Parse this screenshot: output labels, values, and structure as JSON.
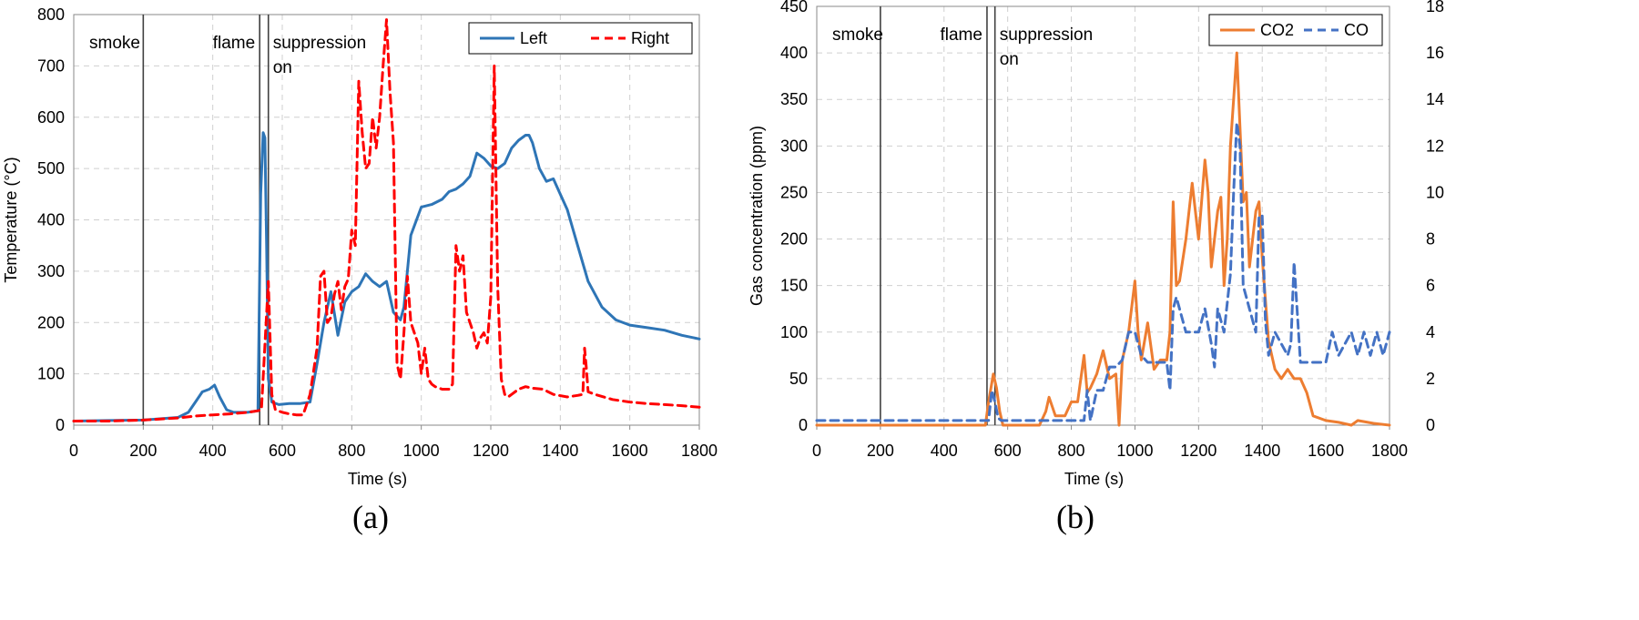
{
  "chart_data": [
    {
      "panel_label": "(a)",
      "type": "line",
      "xlabel": "Time (s)",
      "ylabel": "Temperature (°C)",
      "xlim": [
        0,
        1800
      ],
      "ylim": [
        0,
        800
      ],
      "xticks": [
        0,
        200,
        400,
        600,
        800,
        1000,
        1200,
        1400,
        1600,
        1800
      ],
      "yticks": [
        0,
        100,
        200,
        300,
        400,
        500,
        600,
        700,
        800
      ],
      "grid": "dashed",
      "legend": "top-right",
      "phase_lines": [
        {
          "x": 200,
          "label": [
            "smoke"
          ]
        },
        {
          "x": 535,
          "label": [
            "flame"
          ]
        },
        {
          "x": 560,
          "label": [
            "suppression",
            "on"
          ]
        }
      ],
      "series": [
        {
          "name": "Left",
          "color": "#2E75B6",
          "dash": "solid",
          "x": [
            0,
            100,
            200,
            300,
            330,
            350,
            370,
            390,
            405,
            420,
            440,
            460,
            500,
            530,
            538,
            545,
            550,
            555,
            560,
            565,
            570,
            590,
            620,
            650,
            680,
            700,
            720,
            740,
            760,
            780,
            800,
            820,
            840,
            860,
            880,
            900,
            920,
            940,
            950,
            970,
            1000,
            1030,
            1060,
            1080,
            1100,
            1120,
            1140,
            1160,
            1180,
            1200,
            1220,
            1240,
            1260,
            1280,
            1300,
            1310,
            1320,
            1340,
            1360,
            1380,
            1400,
            1420,
            1450,
            1480,
            1520,
            1560,
            1600,
            1650,
            1700,
            1750,
            1800
          ],
          "y": [
            8,
            9,
            10,
            15,
            25,
            45,
            65,
            70,
            78,
            55,
            30,
            25,
            25,
            28,
            450,
            570,
            560,
            350,
            90,
            70,
            45,
            40,
            42,
            42,
            45,
            120,
            200,
            260,
            175,
            240,
            260,
            270,
            295,
            280,
            270,
            280,
            220,
            205,
            230,
            370,
            425,
            430,
            440,
            455,
            460,
            470,
            485,
            530,
            520,
            505,
            500,
            510,
            540,
            555,
            565,
            565,
            550,
            500,
            475,
            480,
            450,
            420,
            350,
            280,
            230,
            205,
            195,
            190,
            185,
            175,
            168
          ]
        },
        {
          "name": "Right",
          "color": "#FF0000",
          "dash": "dashed",
          "x": [
            0,
            100,
            200,
            300,
            350,
            400,
            450,
            500,
            530,
            540,
            560,
            570,
            580,
            600,
            620,
            640,
            660,
            680,
            700,
            710,
            720,
            730,
            740,
            750,
            760,
            770,
            780,
            790,
            800,
            810,
            820,
            830,
            840,
            850,
            860,
            870,
            880,
            890,
            900,
            910,
            920,
            930,
            940,
            950,
            960,
            970,
            980,
            990,
            1000,
            1010,
            1020,
            1030,
            1040,
            1060,
            1080,
            1090,
            1100,
            1110,
            1120,
            1130,
            1140,
            1150,
            1160,
            1170,
            1180,
            1190,
            1200,
            1210,
            1220,
            1230,
            1240,
            1250,
            1260,
            1280,
            1300,
            1320,
            1350,
            1380,
            1420,
            1450,
            1465,
            1470,
            1475,
            1480,
            1500,
            1550,
            1600,
            1650,
            1700,
            1750,
            1800
          ],
          "y": [
            8,
            8,
            10,
            14,
            18,
            20,
            22,
            25,
            28,
            30,
            280,
            60,
            30,
            25,
            22,
            20,
            20,
            60,
            150,
            290,
            300,
            200,
            210,
            255,
            280,
            225,
            270,
            285,
            380,
            350,
            670,
            570,
            500,
            510,
            600,
            540,
            600,
            700,
            790,
            650,
            550,
            120,
            90,
            180,
            290,
            200,
            180,
            160,
            100,
            150,
            90,
            80,
            75,
            70,
            70,
            80,
            350,
            300,
            330,
            220,
            200,
            180,
            150,
            170,
            180,
            160,
            250,
            700,
            270,
            90,
            60,
            55,
            60,
            70,
            75,
            72,
            70,
            60,
            55,
            58,
            60,
            150,
            110,
            65,
            60,
            50,
            45,
            42,
            40,
            38,
            35
          ]
        }
      ]
    },
    {
      "panel_label": "(b)",
      "type": "line",
      "xlabel": "Time (s)",
      "ylabel": "Gas concentration (ppm)",
      "xlim": [
        0,
        1800
      ],
      "ylim": [
        0,
        450
      ],
      "y2lim": [
        0,
        18
      ],
      "xticks": [
        0,
        200,
        400,
        600,
        800,
        1000,
        1200,
        1400,
        1600,
        1800
      ],
      "yticks": [
        0,
        50,
        100,
        150,
        200,
        250,
        300,
        350,
        400,
        450
      ],
      "y2ticks": [
        0,
        2,
        4,
        6,
        8,
        10,
        12,
        14,
        16,
        18
      ],
      "grid": "dashed",
      "legend": "top-right",
      "phase_lines": [
        {
          "x": 200,
          "label": [
            "smoke"
          ]
        },
        {
          "x": 535,
          "label": [
            "flame"
          ]
        },
        {
          "x": 560,
          "label": [
            "suppression",
            "on"
          ]
        }
      ],
      "series": [
        {
          "name": "CO2",
          "color": "#ED7D31",
          "dash": "solid",
          "axis": "left",
          "x": [
            0,
            530,
            540,
            555,
            565,
            575,
            585,
            600,
            650,
            700,
            720,
            730,
            750,
            780,
            800,
            820,
            840,
            850,
            860,
            880,
            900,
            920,
            940,
            950,
            960,
            980,
            1000,
            1010,
            1020,
            1040,
            1060,
            1080,
            1100,
            1110,
            1120,
            1130,
            1140,
            1160,
            1180,
            1200,
            1220,
            1230,
            1240,
            1260,
            1270,
            1280,
            1290,
            1300,
            1320,
            1330,
            1340,
            1350,
            1360,
            1380,
            1390,
            1400,
            1420,
            1440,
            1460,
            1480,
            1500,
            1520,
            1540,
            1560,
            1600,
            1640,
            1680,
            1700,
            1750,
            1800
          ],
          "y": [
            0,
            0,
            25,
            55,
            40,
            15,
            0,
            0,
            0,
            0,
            15,
            30,
            10,
            10,
            25,
            25,
            75,
            35,
            40,
            55,
            80,
            50,
            55,
            0,
            70,
            100,
            155,
            100,
            70,
            110,
            60,
            70,
            70,
            100,
            240,
            150,
            155,
            200,
            260,
            200,
            285,
            250,
            170,
            230,
            245,
            150,
            200,
            300,
            400,
            320,
            240,
            250,
            170,
            230,
            240,
            180,
            90,
            60,
            50,
            60,
            50,
            50,
            35,
            10,
            5,
            3,
            0,
            5,
            2,
            0
          ]
        },
        {
          "name": "CO",
          "color": "#4472C4",
          "dash": "dashed",
          "axis": "right",
          "x": [
            0,
            100,
            200,
            300,
            400,
            500,
            540,
            550,
            560,
            570,
            580,
            600,
            700,
            800,
            840,
            850,
            860,
            880,
            900,
            920,
            940,
            960,
            980,
            1000,
            1020,
            1040,
            1060,
            1080,
            1100,
            1110,
            1120,
            1130,
            1140,
            1160,
            1180,
            1200,
            1220,
            1240,
            1250,
            1260,
            1280,
            1300,
            1310,
            1320,
            1330,
            1340,
            1360,
            1380,
            1390,
            1400,
            1410,
            1420,
            1440,
            1460,
            1480,
            1490,
            1500,
            1520,
            1560,
            1600,
            1620,
            1640,
            1680,
            1700,
            1720,
            1740,
            1760,
            1780,
            1800
          ],
          "y": [
            0.2,
            0.2,
            0.2,
            0.2,
            0.2,
            0.2,
            0.2,
            1.5,
            1,
            0.3,
            0.2,
            0.2,
            0.2,
            0.2,
            0.2,
            1.5,
            0.2,
            1.5,
            1.5,
            2.5,
            2.5,
            2.8,
            4,
            4,
            3,
            2.7,
            2.7,
            2.7,
            2.7,
            1.5,
            5,
            5.5,
            5,
            4,
            4,
            4,
            5,
            3.5,
            2.5,
            5,
            4,
            6.5,
            10,
            13,
            12,
            6,
            5,
            4,
            9,
            9,
            4.5,
            3,
            4,
            3.5,
            3,
            3.5,
            7,
            2.7,
            2.7,
            2.7,
            4,
            3,
            4,
            3,
            4,
            3,
            4,
            3,
            4
          ]
        }
      ]
    }
  ]
}
